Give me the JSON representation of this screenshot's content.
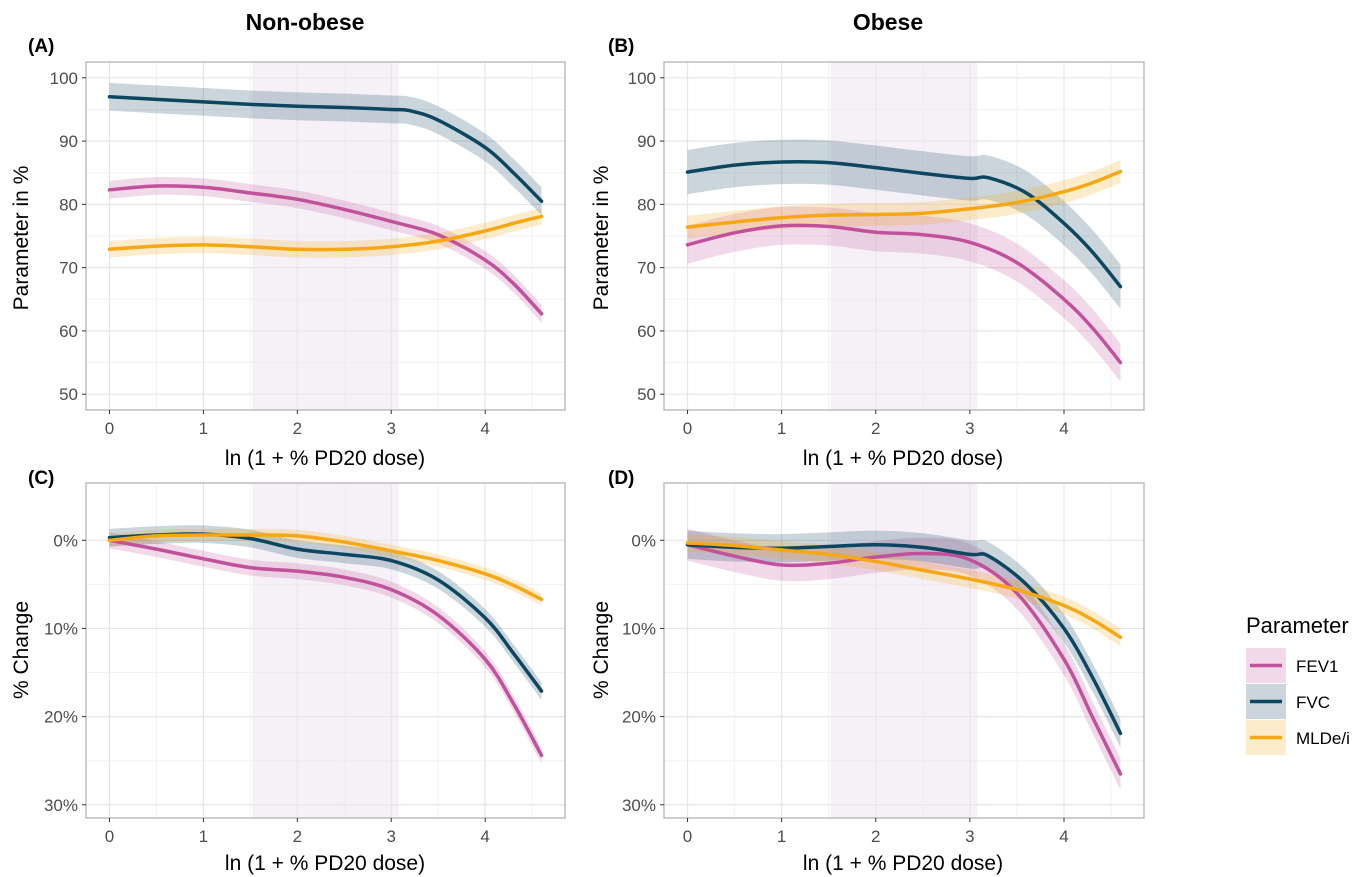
{
  "colors": {
    "FEV1": "#c2519c",
    "FVC": "#0d4660",
    "MLDe/i": "#f5a814",
    "shade": "#ece6f0",
    "grid_major": "#e5e5e5",
    "grid_minor": "#f2f2f2",
    "frame": "#b3b3b3"
  },
  "column_titles": [
    "Non-obese",
    "Obese"
  ],
  "legend": {
    "title": "Parameter",
    "entries": [
      "FEV1",
      "FVC",
      "MLDe/i"
    ]
  },
  "chart_data": [
    {
      "panel_tag": "(A)",
      "type": "line",
      "xlabel": "ln (1 + % PD20 dose)",
      "ylabel": "Parameter in %",
      "xlim": [
        -0.25,
        4.85
      ],
      "ylim": [
        47.5,
        102.5
      ],
      "x_ticks": [
        "0",
        "1",
        "2",
        "3",
        "4"
      ],
      "y_ticks": [
        "100",
        "90",
        "80",
        "70",
        "60",
        "50"
      ],
      "y_tick_values": [
        100,
        90,
        80,
        70,
        60,
        50
      ],
      "shaded_region": [
        1.52,
        3.08
      ],
      "grid": true,
      "series": [
        {
          "name": "FEV1",
          "x": [
            0,
            0.5,
            1,
            1.5,
            2,
            2.5,
            3,
            3.5,
            4,
            4.3,
            4.6
          ],
          "y": [
            82.3,
            82.9,
            82.7,
            81.8,
            80.8,
            79.2,
            77.3,
            75.2,
            71.2,
            67.5,
            62.7
          ],
          "band": 1.4
        },
        {
          "name": "FVC",
          "x": [
            0,
            0.5,
            1,
            1.5,
            2,
            2.5,
            3,
            3.2,
            3.5,
            4,
            4.3,
            4.6
          ],
          "y": [
            97.0,
            96.6,
            96.2,
            95.8,
            95.5,
            95.3,
            95.0,
            94.8,
            93.3,
            89.0,
            85.0,
            80.5
          ],
          "band": 2.2
        },
        {
          "name": "MLDe/i",
          "x": [
            0,
            0.5,
            1,
            1.5,
            2,
            2.5,
            3,
            3.5,
            4,
            4.3,
            4.6
          ],
          "y": [
            72.9,
            73.4,
            73.6,
            73.3,
            72.9,
            72.9,
            73.3,
            74.2,
            75.8,
            77.0,
            78.1
          ],
          "band": 1.3
        }
      ]
    },
    {
      "panel_tag": "(B)",
      "type": "line",
      "xlabel": "ln (1 + % PD20 dose)",
      "ylabel": "Parameter in %",
      "xlim": [
        -0.25,
        4.85
      ],
      "ylim": [
        47.5,
        102.5
      ],
      "x_ticks": [
        "0",
        "1",
        "2",
        "3",
        "4"
      ],
      "y_ticks": [
        "100",
        "90",
        "80",
        "70",
        "60",
        "50"
      ],
      "y_tick_values": [
        100,
        90,
        80,
        70,
        60,
        50
      ],
      "shaded_region": [
        1.52,
        3.08
      ],
      "grid": true,
      "series": [
        {
          "name": "FEV1",
          "x": [
            0,
            0.5,
            1,
            1.5,
            2,
            2.5,
            3,
            3.5,
            4,
            4.3,
            4.6
          ],
          "y": [
            73.6,
            75.5,
            76.6,
            76.5,
            75.6,
            75.2,
            74.0,
            70.8,
            65.0,
            60.5,
            55.0
          ],
          "band": 3.0
        },
        {
          "name": "FVC",
          "x": [
            0,
            0.5,
            1,
            1.5,
            2,
            2.5,
            3,
            3.2,
            3.6,
            4,
            4.3,
            4.6
          ],
          "y": [
            85.1,
            86.2,
            86.7,
            86.6,
            85.8,
            84.9,
            84.1,
            84.2,
            81.8,
            77.0,
            72.5,
            67.0
          ],
          "band": 3.5
        },
        {
          "name": "MLDe/i",
          "x": [
            0,
            0.5,
            1,
            1.5,
            2,
            2.5,
            3,
            3.5,
            4,
            4.3,
            4.6
          ],
          "y": [
            76.4,
            77.2,
            77.9,
            78.3,
            78.4,
            78.6,
            79.3,
            80.3,
            82.0,
            83.4,
            85.2
          ],
          "band": 1.8
        }
      ]
    },
    {
      "panel_tag": "(C)",
      "type": "line",
      "xlabel": "ln (1 + % PD20 dose)",
      "ylabel": "% Change",
      "xlim": [
        -0.25,
        4.85
      ],
      "ylim": [
        -6.5,
        31.5
      ],
      "y_inverted": true,
      "x_ticks": [
        "0",
        "1",
        "2",
        "3",
        "4"
      ],
      "y_ticks": [
        "0%",
        "10%",
        "20%",
        "30%"
      ],
      "y_tick_values": [
        0,
        10,
        20,
        30
      ],
      "shaded_region": [
        1.52,
        3.08
      ],
      "grid": true,
      "series": [
        {
          "name": "FEV1",
          "x": [
            0,
            0.5,
            1,
            1.5,
            2,
            2.5,
            3,
            3.5,
            4,
            4.3,
            4.6
          ],
          "y": [
            0.0,
            1.0,
            2.1,
            3.1,
            3.5,
            4.2,
            5.6,
            8.5,
            13.5,
            18.5,
            24.4
          ],
          "band": 0.9
        },
        {
          "name": "FVC",
          "x": [
            0,
            0.5,
            1,
            1.5,
            2,
            2.5,
            3,
            3.5,
            4,
            4.3,
            4.6
          ],
          "y": [
            -0.3,
            -0.6,
            -0.7,
            -0.2,
            1.0,
            1.6,
            2.3,
            4.5,
            8.8,
            12.8,
            17.1
          ],
          "band": 1.0
        },
        {
          "name": "MLDe/i",
          "x": [
            0,
            0.5,
            1,
            1.5,
            2,
            2.5,
            3,
            3.5,
            4,
            4.3,
            4.6
          ],
          "y": [
            0.0,
            -0.5,
            -0.6,
            -0.6,
            -0.5,
            0.2,
            1.2,
            2.3,
            3.8,
            5.1,
            6.7
          ],
          "band": 0.7
        }
      ]
    },
    {
      "panel_tag": "(D)",
      "type": "line",
      "xlabel": "ln (1 + % PD20 dose)",
      "ylabel": "% Change",
      "xlim": [
        -0.25,
        4.85
      ],
      "ylim": [
        -6.5,
        31.5
      ],
      "y_inverted": true,
      "x_ticks": [
        "0",
        "1",
        "2",
        "3",
        "4"
      ],
      "y_ticks": [
        "0%",
        "10%",
        "20%",
        "30%"
      ],
      "y_tick_values": [
        0,
        10,
        20,
        30
      ],
      "shaded_region": [
        1.52,
        3.08
      ],
      "grid": true,
      "series": [
        {
          "name": "FEV1",
          "x": [
            0,
            0.5,
            1,
            1.5,
            2,
            2.5,
            3,
            3.5,
            4,
            4.3,
            4.6
          ],
          "y": [
            0.5,
            1.8,
            2.8,
            2.6,
            1.9,
            1.5,
            2.2,
            6.0,
            13.5,
            20.0,
            26.5
          ],
          "band": 1.8
        },
        {
          "name": "FVC",
          "x": [
            0,
            0.5,
            1,
            1.5,
            2,
            2.5,
            3,
            3.2,
            3.6,
            4,
            4.3,
            4.6
          ],
          "y": [
            0.5,
            0.8,
            0.9,
            0.7,
            0.5,
            0.8,
            1.6,
            1.8,
            5.0,
            10.0,
            15.5,
            21.9
          ],
          "band": 1.6
        },
        {
          "name": "MLDe/i",
          "x": [
            0,
            0.5,
            1,
            1.5,
            2,
            2.5,
            3,
            3.5,
            4,
            4.3,
            4.6
          ],
          "y": [
            0.3,
            0.6,
            1.1,
            1.6,
            2.4,
            3.4,
            4.4,
            5.6,
            7.4,
            9.0,
            11.0
          ],
          "band": 1.0
        }
      ]
    }
  ]
}
